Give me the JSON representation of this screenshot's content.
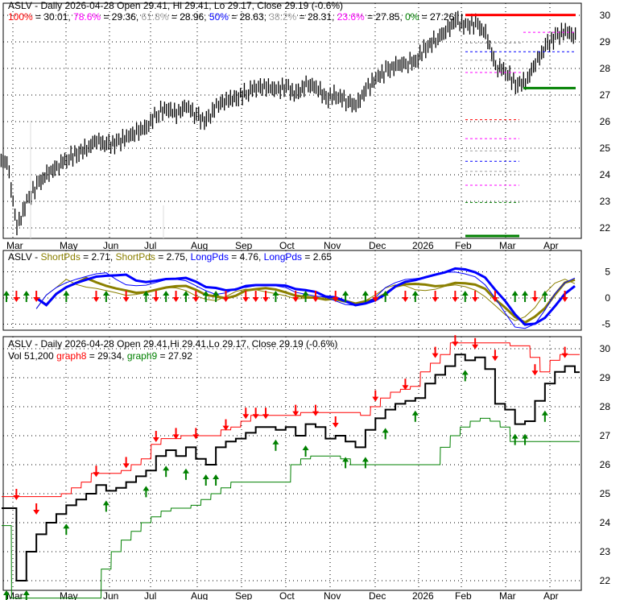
{
  "ticker": "ASLV",
  "panel1": {
    "title": "ASLV - Daily 2026-04-28 Open 29.41, Hi 29.41, Lo 29.17, Close 29.19 (-0.6%)",
    "fib": [
      {
        "label": "100%",
        "value": 30.01,
        "color": "#ff0000",
        "text": " = 30.01, "
      },
      {
        "label": "78.6%",
        "value": 29.36,
        "color": "#ff00ff",
        "text": " = 29.36, "
      },
      {
        "label": "61.8%",
        "value": 28.96,
        "color": "#a0a0a0",
        "text": " = 28.96, "
      },
      {
        "label": "50%",
        "value": 28.63,
        "color": "#0000ff",
        "text": " = 28.63, "
      },
      {
        "label": "38.2%",
        "value": 28.31,
        "color": "#a0a0a0",
        "text": " = 28.31, "
      },
      {
        "label": "23.6%",
        "value": 27.85,
        "color": "#ff00ff",
        "text": " = 27.85, "
      },
      {
        "label": "0%",
        "value": 27.26,
        "color": "#008000",
        "text": " = 27.26"
      }
    ]
  },
  "panel2": {
    "prefix": "ASLV - ",
    "items": [
      {
        "label": "ShortPds",
        "text": " = 2.71, ",
        "color": "#8b8000"
      },
      {
        "label": "ShortPds",
        "text": " = 2.75, ",
        "color": "#8b8000"
      },
      {
        "label": "LongPds",
        "text": " = 4.76, ",
        "color": "#0000ff"
      },
      {
        "label": "LongPds",
        "text": " = 2.65",
        "color": "#0000ff"
      }
    ]
  },
  "panel3": {
    "title": "ASLV - Daily 2026-04-28 Open 29.41,Hi 29.41,Lo 29.17, Close 29.19 (-0.6%)",
    "vol": "Vol 51,200 ",
    "graph8_label": "graph8",
    "graph8_text": " = 29.34, ",
    "graph9_label": "graph9",
    "graph9_text": " = 27.92",
    "graph8_color": "#ff0000",
    "graph9_color": "#008000"
  },
  "chart_data": {
    "type": "line",
    "title": "ASLV - Daily 2026-04-28",
    "x_month_labels": [
      "Mar",
      "May",
      "Jun",
      "Jul",
      "Aug",
      "Sep",
      "Oct",
      "Nov",
      "Dec",
      "2026",
      "Feb",
      "Mar",
      "Apr"
    ],
    "price_ticks": [
      30,
      29,
      28,
      27,
      26,
      25,
      24,
      23,
      22
    ],
    "indicator_ticks": [
      5,
      0,
      -5
    ],
    "ylim_price": [
      21.6,
      30.4
    ],
    "ylim_indicator": [
      -6,
      6
    ],
    "weekly_close": [
      24.5,
      22.0,
      23.0,
      23.6,
      24.0,
      24.3,
      24.6,
      24.8,
      25.0,
      25.3,
      25.1,
      25.2,
      25.4,
      25.6,
      25.8,
      26.3,
      26.5,
      26.3,
      26.6,
      26.2,
      26.0,
      26.6,
      26.8,
      26.9,
      27.1,
      27.3,
      27.3,
      27.2,
      27.3,
      27.0,
      27.4,
      27.3,
      26.9,
      27.0,
      26.8,
      26.6,
      27.2,
      27.6,
      27.9,
      28.1,
      28.2,
      28.3,
      28.8,
      29.1,
      29.4,
      29.8,
      29.6,
      29.7,
      29.3,
      28.1,
      27.9,
      27.4,
      27.5,
      28.2,
      28.8,
      29.2,
      29.4,
      29.19
    ],
    "sell_signals": [
      1,
      3,
      9,
      12,
      15,
      17,
      19,
      22,
      24,
      25,
      26,
      29,
      31,
      33,
      37,
      40,
      43,
      45,
      47,
      49,
      53,
      56
    ],
    "buy_signals": [
      0,
      2,
      6,
      10,
      14,
      16,
      18,
      20,
      21,
      27,
      30,
      34,
      36,
      38,
      41,
      46,
      51,
      52,
      54
    ]
  }
}
